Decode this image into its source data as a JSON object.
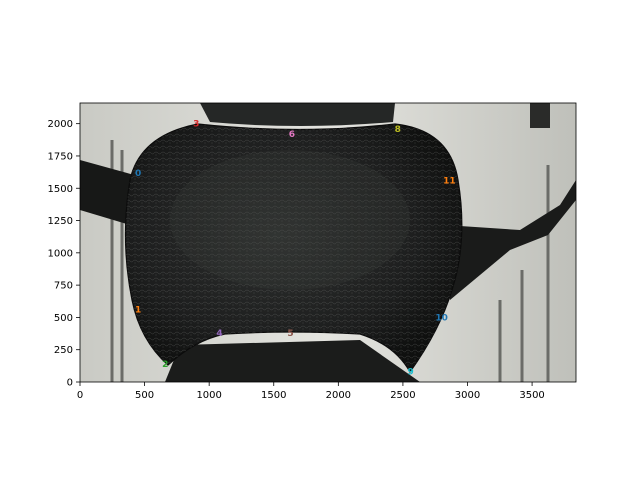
{
  "figure": {
    "image_subject": "beetle pronotum close-up photograph",
    "colors": {
      "background_light": "#d8d9d4",
      "background_mid": "#a9aaa4",
      "body_dark": "#1c1d1d",
      "body_highlight": "#5c5e5c"
    }
  },
  "axes": {
    "x_ticks": [
      "0",
      "500",
      "1000",
      "1500",
      "2000",
      "2500",
      "3000",
      "3500"
    ],
    "y_ticks": [
      "0",
      "250",
      "500",
      "750",
      "1000",
      "1250",
      "1500",
      "1750",
      "2000"
    ],
    "xlim": [
      0,
      3840
    ],
    "ylim": [
      0,
      2160
    ]
  },
  "landmarks": [
    {
      "label": "0",
      "x": 450,
      "y": 1620,
      "color": "#1f77b4"
    },
    {
      "label": "1",
      "x": 450,
      "y": 560,
      "color": "#ff7f0e"
    },
    {
      "label": "2",
      "x": 660,
      "y": 140,
      "color": "#2ca02c"
    },
    {
      "label": "3",
      "x": 900,
      "y": 2000,
      "color": "#d62728"
    },
    {
      "label": "4",
      "x": 1080,
      "y": 380,
      "color": "#9467bd"
    },
    {
      "label": "5",
      "x": 1630,
      "y": 380,
      "color": "#8c564b"
    },
    {
      "label": "6",
      "x": 1640,
      "y": 1920,
      "color": "#e377c2"
    },
    {
      "label": "8",
      "x": 2460,
      "y": 1960,
      "color": "#bcbd22"
    },
    {
      "label": "9",
      "x": 2560,
      "y": 80,
      "color": "#17becf"
    },
    {
      "label": "10",
      "x": 2800,
      "y": 500,
      "color": "#1f77b4"
    },
    {
      "label": "11",
      "x": 2860,
      "y": 1560,
      "color": "#ff7f0e"
    }
  ]
}
